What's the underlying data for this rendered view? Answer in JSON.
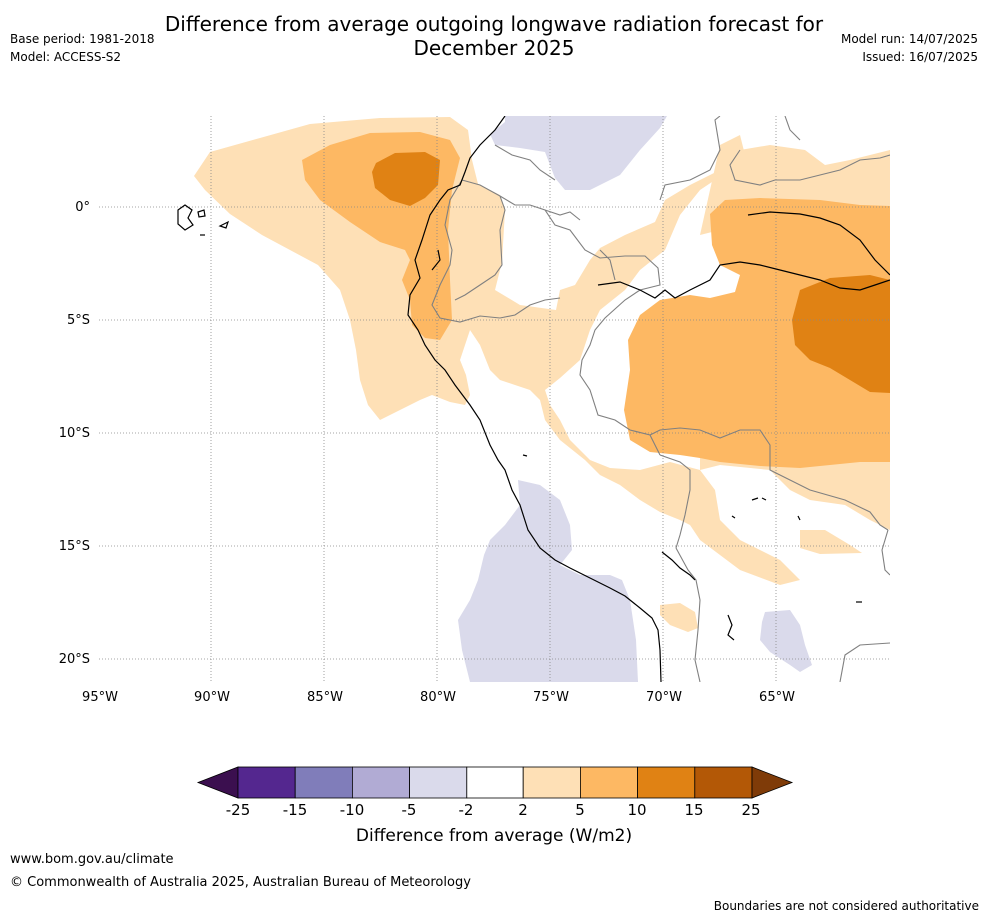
{
  "header": {
    "title_line1": "Difference from average outgoing longwave radiation forecast for",
    "title_line2": "December 2025",
    "base_period": "Base period: 1981-2018",
    "model": "Model: ACCESS-S2",
    "model_run": "Model run: 14/07/2025",
    "issued": "Issued: 16/07/2025"
  },
  "map": {
    "lat_labels": [
      "0°",
      "5°S",
      "10°S",
      "15°S",
      "20°S"
    ],
    "lon_labels": [
      "95°W",
      "90°W",
      "85°W",
      "80°W",
      "75°W",
      "70°W",
      "65°W"
    ]
  },
  "legend": {
    "ticks": [
      "-25",
      "-15",
      "-10",
      "-5",
      "-2",
      "2",
      "5",
      "10",
      "15",
      "25"
    ],
    "colors": [
      "#3b0f4f",
      "#54278f",
      "#807dba",
      "#b1abd4",
      "#dadaeb",
      "#ffffff",
      "#fee0b6",
      "#fdb863",
      "#e08214",
      "#b35806",
      "#7f3b08"
    ],
    "title": "Difference from average (W/m2)"
  },
  "footer": {
    "url": "www.bom.gov.au/climate",
    "copyright": "© Commonwealth of Australia 2025, Australian Bureau of Meteorology",
    "disclaimer": "Boundaries are not considered authoritative"
  }
}
